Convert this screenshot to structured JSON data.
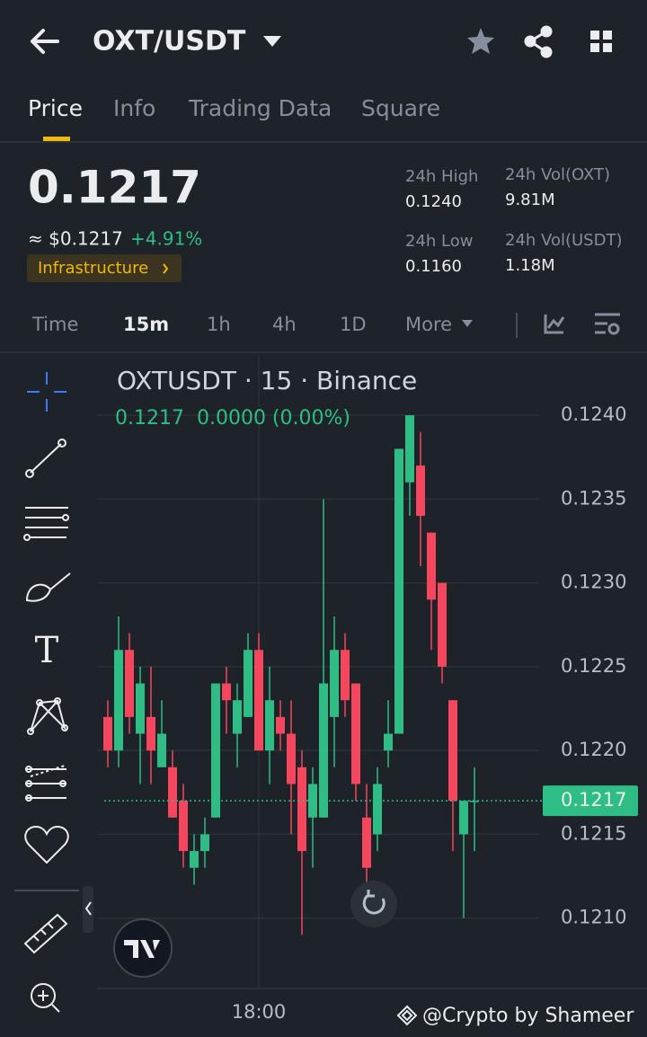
{
  "header": {
    "title": "OXT/USDT"
  },
  "tabs": [
    "Price",
    "Info",
    "Trading Data",
    "Square"
  ],
  "summary": {
    "price": "0.1217",
    "usd_price": "≈ $0.1217",
    "change": "+4.91%",
    "tag": "Infrastructure",
    "stats": [
      {
        "label": "24h High",
        "value": "0.1240"
      },
      {
        "label": "24h Vol(OXT)",
        "value": "9.81M"
      },
      {
        "label": "24h Low",
        "value": "0.1160"
      },
      {
        "label": "24h Vol(USDT)",
        "value": "1.18M"
      }
    ]
  },
  "timeframes": [
    "Time",
    "15m",
    "1h",
    "4h",
    "1D",
    "More"
  ],
  "chart_data": {
    "type": "candlestick",
    "title": "OXTUSDT · 15 · Binance",
    "subtitle": "0.1217  0.0000 (0.00%)",
    "up_color": "#2ebd85",
    "down_color": "#f6465d",
    "categories": [
      null,
      null,
      null,
      null,
      null,
      null,
      null,
      null,
      null,
      null,
      null,
      null,
      null,
      null,
      "18:00",
      null,
      null,
      null,
      null,
      null,
      null,
      null,
      null,
      null,
      null,
      null,
      null,
      null,
      null,
      null,
      null,
      null,
      null,
      null,
      null
    ],
    "open": [
      0.1222,
      0.122,
      0.1226,
      0.1221,
      0.1222,
      0.1219,
      0.1219,
      0.1217,
      0.1213,
      0.1214,
      0.1216,
      0.1224,
      0.1221,
      0.1222,
      0.1226,
      0.122,
      0.1222,
      0.1221,
      0.1219,
      0.1216,
      0.1216,
      0.1222,
      0.1226,
      0.1224,
      0.1216,
      0.1215,
      0.122,
      0.1221,
      0.1236,
      0.1237,
      0.1233,
      0.123,
      0.1223,
      0.1215,
      0.1217
    ],
    "high": [
      0.1223,
      0.1228,
      0.1227,
      0.1225,
      0.1225,
      0.1223,
      0.122,
      0.1218,
      0.1215,
      0.1216,
      0.1224,
      0.1225,
      0.1224,
      0.1227,
      0.1227,
      0.1225,
      0.1223,
      0.1223,
      0.122,
      0.1219,
      0.1235,
      0.1228,
      0.1227,
      0.1224,
      0.1218,
      0.1219,
      0.1223,
      0.1238,
      0.124,
      0.1239,
      0.1233,
      0.123,
      0.1223,
      0.1217,
      0.1219
    ],
    "low": [
      0.1219,
      0.1219,
      0.1221,
      0.1218,
      0.1218,
      0.1219,
      0.1216,
      0.1213,
      0.1212,
      0.1213,
      0.1216,
      0.1221,
      0.1219,
      0.1222,
      0.122,
      0.1218,
      0.122,
      0.1215,
      0.1209,
      0.1213,
      0.1216,
      0.1219,
      0.1222,
      0.1217,
      0.1212,
      0.1214,
      0.1219,
      0.1221,
      0.1234,
      0.1231,
      0.1226,
      0.1224,
      0.1214,
      0.121,
      0.1214
    ],
    "close": [
      0.122,
      0.1226,
      0.1222,
      0.1224,
      0.122,
      0.1221,
      0.1216,
      0.1214,
      0.1214,
      0.1215,
      0.1224,
      0.1223,
      0.1223,
      0.1226,
      0.122,
      0.1223,
      0.1221,
      0.1218,
      0.1214,
      0.1218,
      0.1224,
      0.1226,
      0.1223,
      0.1218,
      0.1213,
      0.1218,
      0.1221,
      0.1238,
      0.124,
      0.1234,
      0.1229,
      0.1225,
      0.1217,
      0.1217,
      0.1217
    ],
    "current_price": 0.1217,
    "ylim": [
      0.12058,
      0.12436
    ],
    "yticks": [
      {
        "value": 0.121,
        "label": "0.1210"
      },
      0.1215,
      {
        "value": 0.122,
        "label": "0.1220"
      },
      0.1225,
      {
        "value": 0.123,
        "label": "0.1230"
      },
      0.1235,
      {
        "value": 0.124,
        "label": "0.1240"
      }
    ],
    "grid": true
  },
  "watermark": "@Crypto by Shameer"
}
